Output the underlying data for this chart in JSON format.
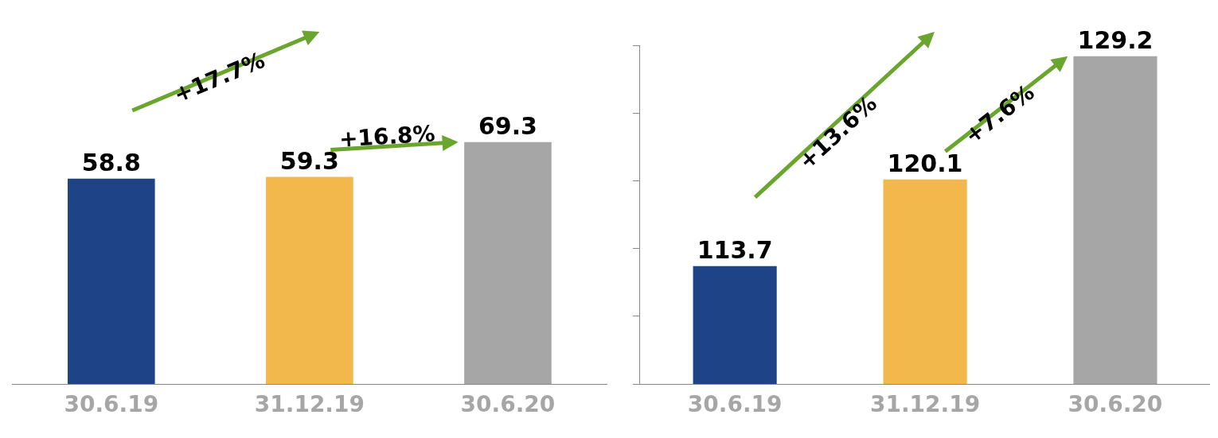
{
  "chart_data": [
    {
      "type": "bar",
      "categories": [
        "30.6.19",
        "31.12.19",
        "30.6.20"
      ],
      "values": [
        58.8,
        59.3,
        69.3
      ],
      "colors": [
        "#1f4387",
        "#f2b84b",
        "#a6a6a6"
      ],
      "data_labels": true,
      "tick_labels": "x",
      "annotations": [
        "+17.7%",
        "+16.8%"
      ]
    },
    {
      "type": "bar",
      "categories": [
        "30.6.19",
        "31.12.19",
        "30.6.20"
      ],
      "values": [
        113.7,
        120.1,
        129.2
      ],
      "colors": [
        "#1f4387",
        "#f2b84b",
        "#a6a6a6"
      ],
      "ylim": [
        105,
        130
      ],
      "yticks": [
        {
          "value": 105,
          "label": null
        },
        {
          "value": 110,
          "label": null
        },
        {
          "value": 115,
          "label": null
        },
        {
          "value": 120,
          "label": null
        },
        {
          "value": 125,
          "label": null
        },
        {
          "value": 130,
          "label": null
        }
      ],
      "data_labels": true,
      "tick_labels": "x",
      "annotations": [
        "+13.6%",
        "+7.6%"
      ]
    }
  ]
}
